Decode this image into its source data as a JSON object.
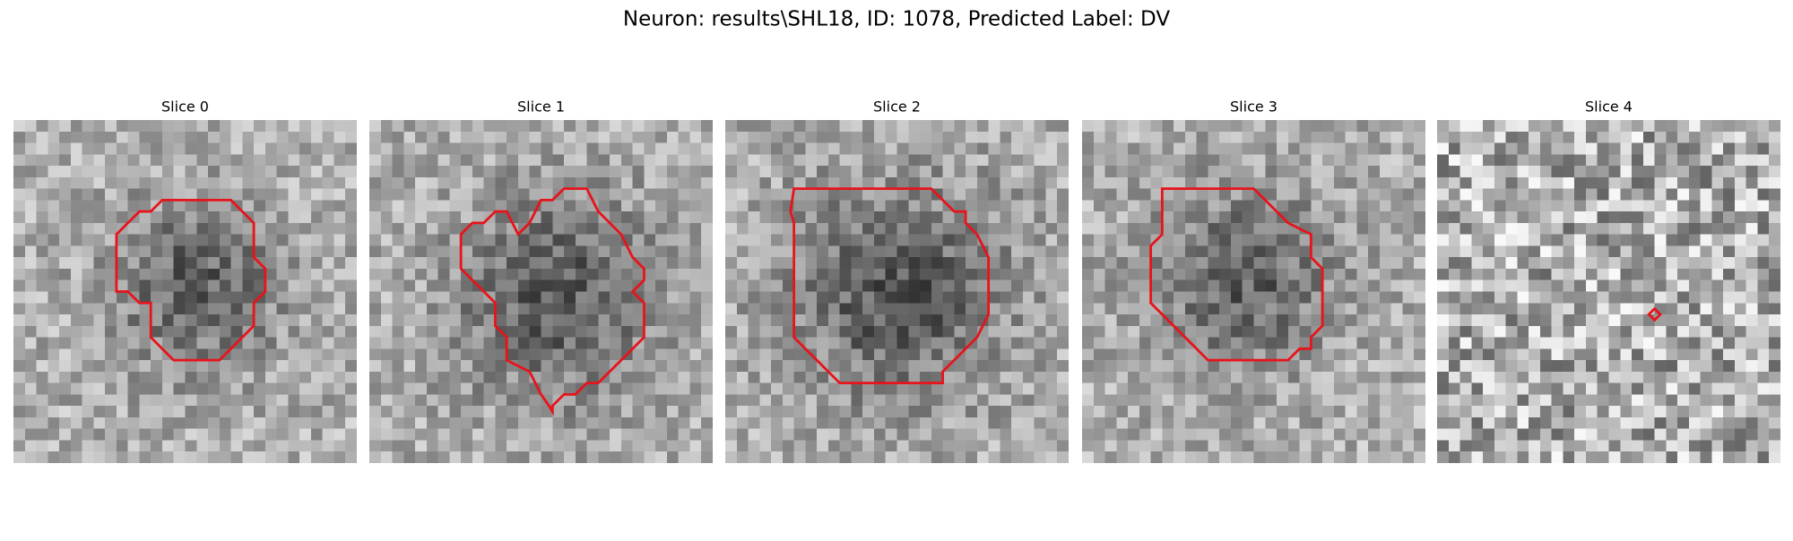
{
  "title": "Neuron: results\\SHL18, ID: 1078, Predicted Label: DV",
  "panels": [
    {
      "title": "Slice 0"
    },
    {
      "title": "Slice 1"
    },
    {
      "title": "Slice 2"
    },
    {
      "title": "Slice 3"
    },
    {
      "title": "Slice 4"
    }
  ]
}
